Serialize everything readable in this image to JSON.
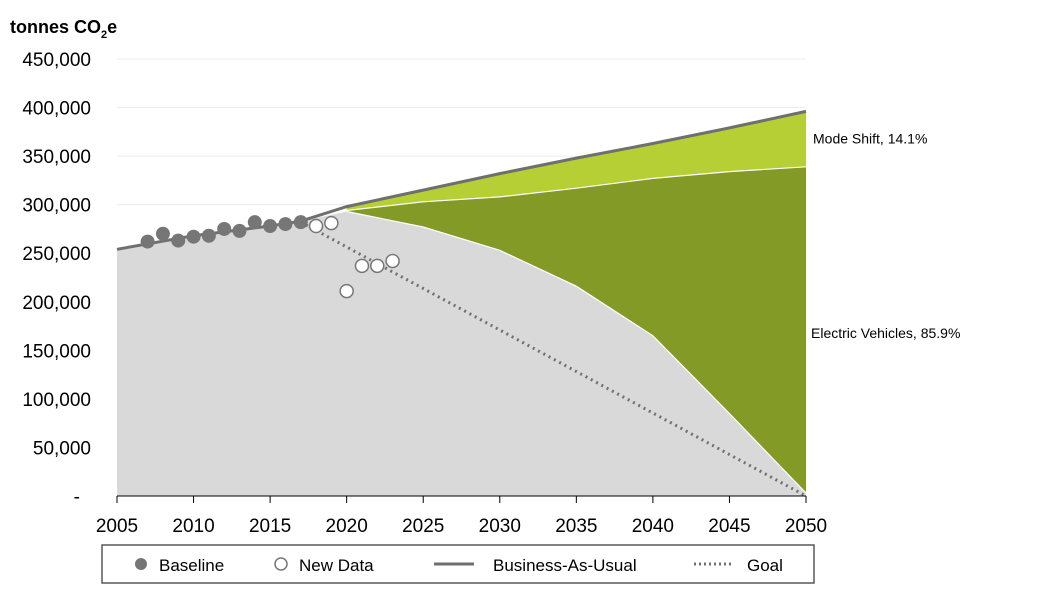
{
  "chart_data": {
    "type": "area",
    "ylabel_prefix": "tonnes CO",
    "ylabel_sub": "2",
    "ylabel_suffix": "e",
    "ylim": [
      0,
      450000
    ],
    "xlim": [
      2005,
      2050
    ],
    "y_ticks": [
      {
        "value": 0,
        "label": "-"
      },
      {
        "value": 50000,
        "label": "50,000"
      },
      {
        "value": 100000,
        "label": "100,000"
      },
      {
        "value": 150000,
        "label": "150,000"
      },
      {
        "value": 200000,
        "label": "200,000"
      },
      {
        "value": 250000,
        "label": "250,000"
      },
      {
        "value": 300000,
        "label": "300,000"
      },
      {
        "value": 350000,
        "label": "350,000"
      },
      {
        "value": 400000,
        "label": "400,000"
      },
      {
        "value": 450000,
        "label": "450,000"
      }
    ],
    "x_ticks": [
      {
        "value": 2005,
        "label": "2005"
      },
      {
        "value": 2010,
        "label": "2010"
      },
      {
        "value": 2015,
        "label": "2015"
      },
      {
        "value": 2020,
        "label": "2020"
      },
      {
        "value": 2025,
        "label": "2025"
      },
      {
        "value": 2030,
        "label": "2030"
      },
      {
        "value": 2035,
        "label": "2035"
      },
      {
        "value": 2040,
        "label": "2040"
      },
      {
        "value": 2045,
        "label": "2045"
      },
      {
        "value": 2050,
        "label": "2050"
      }
    ],
    "gridlines": true,
    "colors": {
      "remaining": "#d9d9d9",
      "electric_vehicles": "#839a27",
      "mode_shift": "#b5cf35",
      "bau_line": "#6f6f6f",
      "baseline_marker": "#767676",
      "goal_line": "#707070",
      "gridline": "#ececec",
      "axis": "#000000",
      "legend_border": "#595959"
    },
    "series": {
      "business_as_usual": {
        "name": "Business-As-Usual",
        "x": [
          2005,
          2010,
          2015,
          2017,
          2020,
          2025,
          2030,
          2035,
          2040,
          2045,
          2050
        ],
        "y": [
          254000,
          268000,
          278000,
          283000,
          298000,
          315000,
          332000,
          348000,
          363000,
          379000,
          396000
        ]
      },
      "after_mode_shift": {
        "x": [
          2020,
          2025,
          2030,
          2035,
          2040,
          2045,
          2050
        ],
        "y": [
          294000,
          303000,
          308000,
          317000,
          327000,
          334000,
          339000
        ]
      },
      "after_electric_vehicles": {
        "x": [
          2020,
          2025,
          2030,
          2035,
          2040,
          2045,
          2050
        ],
        "y": [
          293000,
          277000,
          253000,
          216000,
          165000,
          85000,
          3000
        ]
      },
      "baseline": {
        "name": "Baseline",
        "x": [
          2007,
          2008,
          2009,
          2010,
          2011,
          2012,
          2013,
          2014,
          2015,
          2016,
          2017
        ],
        "y": [
          262000,
          270000,
          263000,
          267000,
          268000,
          275000,
          273000,
          282000,
          278000,
          280000,
          282000
        ]
      },
      "new_data": {
        "name": "New Data",
        "x": [
          2018,
          2019,
          2020,
          2021,
          2022,
          2023
        ],
        "y": [
          278000,
          281000,
          211000,
          237000,
          237000,
          242000
        ]
      },
      "goal": {
        "name": "Goal",
        "x": [
          2017,
          2050
        ],
        "y": [
          282000,
          0
        ]
      }
    },
    "annotations": [
      {
        "text": "Mode Shift, 14.1%",
        "x": 2050,
        "y": 368000
      },
      {
        "text": "Electric Vehicles, 85.9%",
        "x": 2050,
        "y": 168000
      }
    ],
    "legend": {
      "placement": "bottom",
      "items": [
        {
          "label": "Baseline",
          "symbol": "filled-circle"
        },
        {
          "label": "New Data",
          "symbol": "open-circle"
        },
        {
          "label": "Business-As-Usual",
          "symbol": "solid-line"
        },
        {
          "label": "Goal",
          "symbol": "dotted-line"
        }
      ]
    }
  }
}
